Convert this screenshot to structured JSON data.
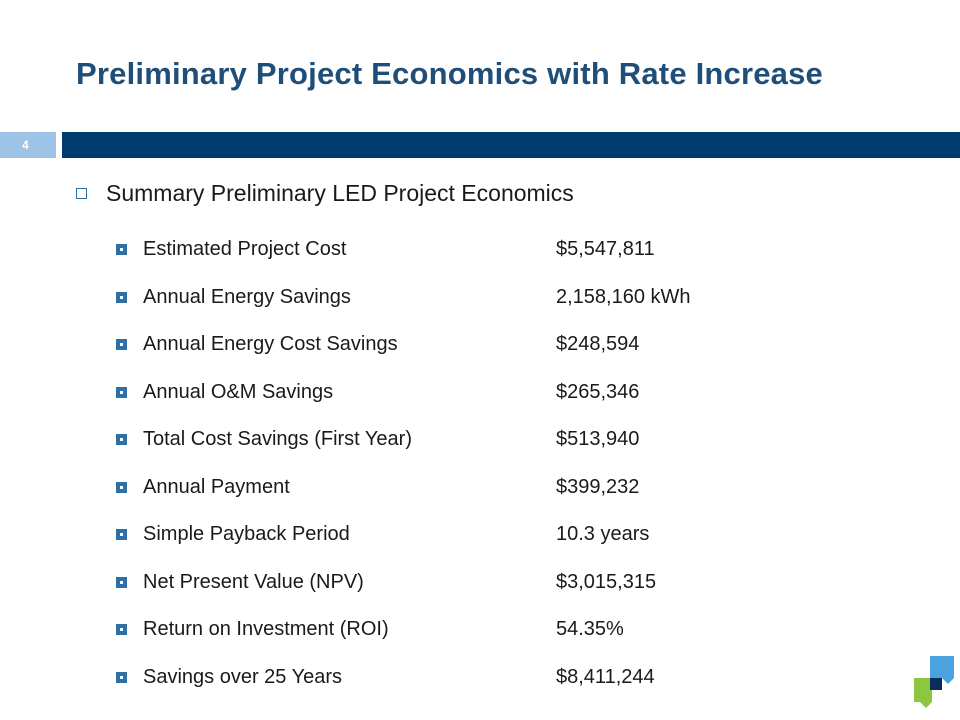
{
  "slide": {
    "title": "Preliminary Project Economics with Rate Increase",
    "number": "4",
    "heading": "Summary Preliminary LED Project Economics",
    "items": [
      {
        "label": "Estimated Project Cost",
        "value": "$5,547,811"
      },
      {
        "label": "Annual Energy Savings",
        "value": "2,158,160 kWh"
      },
      {
        "label": "Annual Energy Cost Savings",
        "value": "$248,594"
      },
      {
        "label": "Annual O&M Savings",
        "value": "$265,346"
      },
      {
        "label": "Total Cost Savings (First Year)",
        "value": "$513,940"
      },
      {
        "label": "Annual Payment",
        "value": "$399,232"
      },
      {
        "label": "Simple Payback Period",
        "value": "10.3 years"
      },
      {
        "label": "Net Present Value (NPV)",
        "value": "$3,015,315"
      },
      {
        "label": "Return on Investment (ROI)",
        "value": "54.35%"
      },
      {
        "label": "Savings over 25 Years",
        "value": "$8,411,244"
      }
    ]
  },
  "colors": {
    "title": "#1f4e79",
    "bar_dark": "#003b6f",
    "bar_light": "#9dc3e6",
    "bullet": "#2e6fa8",
    "logo_green": "#8dc63f",
    "logo_blue": "#4aa3df",
    "logo_navy": "#0a2d5a"
  }
}
